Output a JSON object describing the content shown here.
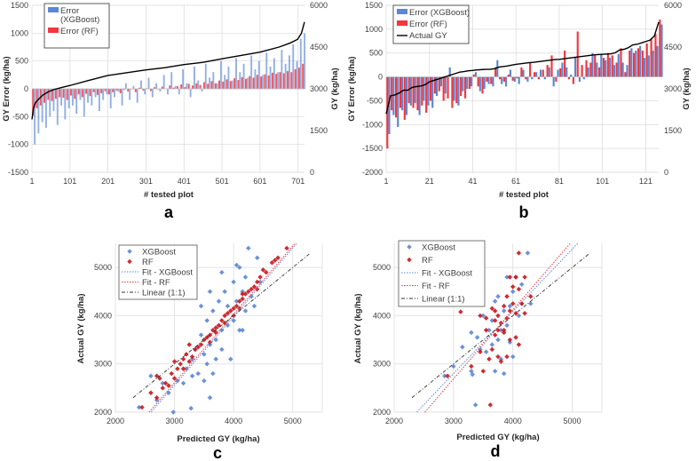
{
  "colors": {
    "xgboost": "#5b87d4",
    "rf": "#f2373f",
    "rf_scatter": "#c8161e",
    "actual": "#000000",
    "linear": "#333333"
  },
  "chart_data": [
    {
      "panel": "a",
      "type": "bar",
      "xlabel": "# tested plot",
      "ylabel": "GY Error (kg/ha)",
      "ylabel_right": "GY (kg/ha)",
      "xlim": [
        1,
        718
      ],
      "ylim": [
        -1500,
        1500
      ],
      "ylim_right": [
        0,
        6000
      ],
      "xticks": [
        "1",
        "101",
        "201",
        "301",
        "401",
        "501",
        "601",
        "701"
      ],
      "yticks": [
        "-1500",
        "-1000",
        "-500",
        "0",
        "500",
        "1000",
        "1500"
      ],
      "yticks_right": [
        "0",
        "1500",
        "3000",
        "4500",
        "6000"
      ],
      "legend": [
        "Error (XGBoost)",
        "Error (RF)"
      ],
      "sample_step": 10,
      "error_xgboost": [
        -1000,
        -800,
        -600,
        -700,
        -500,
        -400,
        -650,
        -300,
        -550,
        -350,
        -300,
        -450,
        -200,
        -500,
        -250,
        -300,
        -150,
        -400,
        -200,
        -100,
        -350,
        -150,
        -50,
        -300,
        100,
        -200,
        50,
        -250,
        150,
        -100,
        200,
        -150,
        100,
        -50,
        250,
        -100,
        300,
        50,
        -100,
        350,
        100,
        -150,
        400,
        150,
        -50,
        450,
        200,
        300,
        100,
        500,
        250,
        400,
        150,
        550,
        300,
        450,
        200,
        600,
        350,
        500,
        250,
        650,
        400,
        550,
        300,
        700,
        450,
        600,
        800,
        500,
        900,
        1000
      ],
      "error_rf": [
        -480,
        -350,
        -300,
        -250,
        -200,
        -220,
        -180,
        -150,
        -160,
        -200,
        -120,
        -180,
        -100,
        -150,
        -90,
        -130,
        -60,
        -110,
        -80,
        -40,
        -100,
        -60,
        -30,
        -80,
        -20,
        -50,
        -10,
        -60,
        20,
        -30,
        10,
        -40,
        30,
        -10,
        40,
        0,
        60,
        20,
        50,
        80,
        30,
        90,
        60,
        100,
        70,
        120,
        90,
        140,
        100,
        150,
        130,
        170,
        140,
        190,
        160,
        210,
        180,
        230,
        200,
        250,
        220,
        260,
        240,
        290,
        270,
        300,
        280,
        320,
        300,
        350,
        380,
        450
      ],
      "actual_gy": {
        "x": [
          1,
          5,
          10,
          20,
          30,
          45,
          60,
          80,
          101,
          150,
          201,
          251,
          301,
          351,
          401,
          451,
          501,
          551,
          601,
          651,
          681,
          700,
          710,
          718
        ],
        "y": [
          1900,
          2300,
          2500,
          2650,
          2780,
          2900,
          2980,
          3050,
          3120,
          3300,
          3480,
          3580,
          3680,
          3760,
          3870,
          3950,
          4080,
          4200,
          4320,
          4500,
          4650,
          4780,
          5000,
          5400
        ]
      }
    },
    {
      "panel": "b",
      "type": "bar",
      "xlabel": "# tested plot",
      "ylabel": "GY Error (kg/ha)",
      "ylabel_right": "GY (kg/ha)",
      "xlim": [
        1,
        127
      ],
      "ylim": [
        -2000,
        1500
      ],
      "ylim_right": [
        0,
        6000
      ],
      "xticks": [
        "1",
        "21",
        "41",
        "61",
        "81",
        "101",
        "121"
      ],
      "yticks": [
        "-2000",
        "-1500",
        "-1000",
        "-500",
        "0",
        "500",
        "1000",
        "1500"
      ],
      "yticks_right": [
        "0",
        "1500",
        "3000",
        "4500",
        "6000"
      ],
      "legend": [
        "Error (XGBoost)",
        "Error (RF)",
        "Actual GY"
      ],
      "sample_step": 2,
      "actual_gy": [
        2100,
        2750,
        2780,
        2850,
        2950,
        2950,
        3050,
        3080,
        3100,
        3150,
        3250,
        3300,
        3350,
        3400,
        3450,
        3500,
        3550,
        3600,
        3620,
        3650,
        3660,
        3680,
        3690,
        3700,
        3700,
        3720,
        3780,
        3800,
        3820,
        3850,
        3880,
        3900,
        3920,
        3940,
        3950,
        3970,
        3990,
        4010,
        4030,
        4050,
        4060,
        4080,
        4100,
        4120,
        4140,
        4160,
        4180,
        4200,
        4220,
        4230,
        4240,
        4250,
        4260,
        4300,
        4400,
        4420,
        4480,
        4580,
        4600,
        4650,
        4700,
        4750,
        4900,
        5400
      ],
      "error_xgboost": [
        -1200,
        -800,
        -1050,
        -700,
        -800,
        -600,
        -550,
        -800,
        -500,
        -600,
        -650,
        -400,
        -200,
        -350,
        200,
        -500,
        -600,
        -300,
        -250,
        -200,
        100,
        -300,
        -250,
        -150,
        -200,
        350,
        -150,
        -200,
        150,
        -100,
        -150,
        150,
        -100,
        -50,
        100,
        150,
        -50,
        200,
        -200,
        150,
        300,
        200,
        50,
        400,
        -100,
        -50,
        200,
        500,
        300,
        480,
        350,
        400,
        250,
        480,
        300,
        250,
        600,
        550,
        650,
        400,
        450,
        550,
        650,
        1100
      ],
      "error_rf": [
        -1500,
        -700,
        -850,
        -650,
        -900,
        -550,
        -650,
        -700,
        -600,
        -750,
        -500,
        -350,
        -300,
        -500,
        -450,
        -650,
        -550,
        -400,
        -450,
        -250,
        50,
        -200,
        -350,
        -100,
        -150,
        200,
        -50,
        -100,
        50,
        -80,
        -30,
        200,
        -50,
        300,
        100,
        -50,
        150,
        250,
        450,
        -100,
        180,
        550,
        -50,
        -150,
        950,
        250,
        350,
        300,
        450,
        200,
        400,
        500,
        450,
        300,
        600,
        100,
        550,
        500,
        600,
        550,
        700,
        800,
        900,
        1200
      ]
    },
    {
      "panel": "c",
      "type": "scatter",
      "xlabel": "Predicted GY (kg/ha)",
      "ylabel": "Actual GY (kg/ha)",
      "xlim": [
        2000,
        5500
      ],
      "ylim": [
        2000,
        5500
      ],
      "xticks": [
        "2000",
        "3000",
        "4000",
        "5000"
      ],
      "yticks": [
        "2000",
        "3000",
        "4000",
        "5000"
      ],
      "legend": [
        "XGBoost",
        "RF",
        "Fit - XGBoost",
        "Fit - RF",
        "Linear (1:1)"
      ],
      "fit_xgboost": {
        "slope": 1.42,
        "intercept": -1700
      },
      "fit_rf": {
        "slope": 1.417,
        "intercept": -1642
      },
      "linear_range": [
        2300,
        5300
      ],
      "xgboost": [
        [
          2400,
          2100
        ],
        [
          2600,
          2750
        ],
        [
          2700,
          2250
        ],
        [
          2800,
          2600
        ],
        [
          2900,
          2400
        ],
        [
          2980,
          2000
        ],
        [
          3050,
          2650
        ],
        [
          3150,
          2600
        ],
        [
          3200,
          2900
        ],
        [
          3280,
          2080
        ],
        [
          3300,
          2750
        ],
        [
          3350,
          3300
        ],
        [
          3400,
          2800
        ],
        [
          3450,
          3600
        ],
        [
          3450,
          4200
        ],
        [
          3500,
          3200
        ],
        [
          3500,
          2650
        ],
        [
          3550,
          3900
        ],
        [
          3600,
          2300
        ],
        [
          3600,
          3400
        ],
        [
          3650,
          4100
        ],
        [
          3700,
          3500
        ],
        [
          3700,
          3100
        ],
        [
          3750,
          4300
        ],
        [
          3800,
          3700
        ],
        [
          3800,
          3300
        ],
        [
          3850,
          4500
        ],
        [
          3900,
          3800
        ],
        [
          3900,
          4200
        ],
        [
          3950,
          3100
        ],
        [
          4000,
          4700
        ],
        [
          4000,
          3900
        ],
        [
          4050,
          4300
        ],
        [
          4100,
          3700
        ],
        [
          4100,
          5000
        ],
        [
          4150,
          4500
        ],
        [
          4200,
          4100
        ],
        [
          4200,
          4800
        ],
        [
          4250,
          5400
        ],
        [
          4300,
          4400
        ],
        [
          4350,
          4200
        ],
        [
          4400,
          5200
        ],
        [
          4450,
          4700
        ],
        [
          4150,
          3700
        ],
        [
          3600,
          4500
        ],
        [
          3800,
          4900
        ],
        [
          3550,
          3000
        ],
        [
          3650,
          2800
        ],
        [
          3300,
          3100
        ],
        [
          4050,
          5050
        ]
      ],
      "rf": [
        [
          2450,
          2100
        ],
        [
          2600,
          2400
        ],
        [
          2700,
          2300
        ],
        [
          2750,
          2700
        ],
        [
          2800,
          2500
        ],
        [
          2850,
          2600
        ],
        [
          2900,
          2550
        ],
        [
          2950,
          2800
        ],
        [
          3000,
          2700
        ],
        [
          3050,
          2900
        ],
        [
          3100,
          3000
        ],
        [
          3150,
          3100
        ],
        [
          3150,
          2900
        ],
        [
          3200,
          3200
        ],
        [
          3250,
          3050
        ],
        [
          3300,
          3150
        ],
        [
          3350,
          3300
        ],
        [
          3400,
          3350
        ],
        [
          3450,
          3400
        ],
        [
          3500,
          3500
        ],
        [
          3550,
          3550
        ],
        [
          3600,
          3600
        ],
        [
          3650,
          3700
        ],
        [
          3700,
          3750
        ],
        [
          3700,
          3650
        ],
        [
          3750,
          3800
        ],
        [
          3800,
          3900
        ],
        [
          3850,
          3850
        ],
        [
          3850,
          4000
        ],
        [
          3900,
          4050
        ],
        [
          3950,
          4100
        ],
        [
          4000,
          4150
        ],
        [
          4000,
          4000
        ],
        [
          4050,
          4200
        ],
        [
          4100,
          4300
        ],
        [
          4100,
          4150
        ],
        [
          4150,
          4350
        ],
        [
          4200,
          4450
        ],
        [
          4250,
          4500
        ],
        [
          4300,
          4550
        ],
        [
          4350,
          4600
        ],
        [
          4400,
          4700
        ],
        [
          4450,
          4800
        ],
        [
          4500,
          4950
        ],
        [
          4550,
          4900
        ],
        [
          4650,
          5100
        ],
        [
          4700,
          5150
        ],
        [
          4750,
          5200
        ],
        [
          4900,
          5400
        ],
        [
          2700,
          2750
        ],
        [
          3000,
          3050
        ],
        [
          3250,
          3400
        ],
        [
          3600,
          3450
        ],
        [
          4150,
          4450
        ],
        [
          4400,
          4550
        ]
      ]
    },
    {
      "panel": "d",
      "type": "scatter",
      "xlabel": "Predicted GY (kg/ha)",
      "ylabel": "Actual GY (kg/ha)",
      "xlim": [
        2000,
        5500
      ],
      "ylim": [
        2000,
        5500
      ],
      "xticks": [
        "2000",
        "3000",
        "4000",
        "5000"
      ],
      "yticks": [
        "2000",
        "3000",
        "4000",
        "5000"
      ],
      "legend": [
        "XGBoost",
        "RF",
        "Fit - XGBoost",
        "Fit - RF",
        "Linear (1:1)"
      ],
      "fit_xgboost": {
        "slope": 1.29,
        "intercept": -1070
      },
      "fit_rf": {
        "slope": 1.43,
        "intercept": -1600
      },
      "linear_range": [
        2300,
        5300
      ],
      "xgboost": [
        [
          2850,
          2750
        ],
        [
          3000,
          2950
        ],
        [
          3150,
          3350
        ],
        [
          3300,
          3650
        ],
        [
          3300,
          2850
        ],
        [
          3320,
          2780
        ],
        [
          3370,
          2150
        ],
        [
          3400,
          3550
        ],
        [
          3450,
          3300
        ],
        [
          3500,
          4000
        ],
        [
          3550,
          3250
        ],
        [
          3600,
          3700
        ],
        [
          3650,
          3400
        ],
        [
          3700,
          2850
        ],
        [
          3700,
          4300
        ],
        [
          3750,
          3500
        ],
        [
          3750,
          4400
        ],
        [
          3800,
          3100
        ],
        [
          3850,
          2800
        ],
        [
          3850,
          4100
        ],
        [
          3900,
          3800
        ],
        [
          3950,
          4200
        ],
        [
          3950,
          3450
        ],
        [
          4000,
          3150
        ],
        [
          4000,
          4500
        ],
        [
          4050,
          4800
        ],
        [
          4100,
          4000
        ],
        [
          4150,
          4650
        ],
        [
          4150,
          4250
        ],
        [
          4250,
          5300
        ],
        [
          4300,
          4250
        ],
        [
          3900,
          4800
        ],
        [
          3800,
          3700
        ],
        [
          3650,
          3900
        ]
      ],
      "rf": [
        [
          2900,
          2750
        ],
        [
          3120,
          4080
        ],
        [
          3300,
          2950
        ],
        [
          3450,
          4000
        ],
        [
          3450,
          3250
        ],
        [
          3500,
          2850
        ],
        [
          3550,
          3700
        ],
        [
          3600,
          3100
        ],
        [
          3620,
          2150
        ],
        [
          3650,
          3300
        ],
        [
          3650,
          4150
        ],
        [
          3700,
          3600
        ],
        [
          3700,
          3900
        ],
        [
          3750,
          3150
        ],
        [
          3750,
          4000
        ],
        [
          3800,
          3850
        ],
        [
          3800,
          3050
        ],
        [
          3850,
          4200
        ],
        [
          3850,
          3700
        ],
        [
          3900,
          3950
        ],
        [
          3900,
          4400
        ],
        [
          3950,
          4100
        ],
        [
          3950,
          3500
        ],
        [
          4000,
          4600
        ],
        [
          4000,
          4250
        ],
        [
          4050,
          4050
        ],
        [
          4050,
          3550
        ],
        [
          4100,
          4550
        ],
        [
          4100,
          5300
        ],
        [
          4150,
          4250
        ],
        [
          4200,
          4800
        ],
        [
          4200,
          4050
        ],
        [
          4300,
          4400
        ],
        [
          3950,
          4800
        ],
        [
          3850,
          3650
        ],
        [
          3550,
          3950
        ],
        [
          3900,
          3150
        ],
        [
          4050,
          4800
        ],
        [
          3750,
          3700
        ],
        [
          3700,
          4100
        ],
        [
          4100,
          3400
        ]
      ]
    }
  ]
}
